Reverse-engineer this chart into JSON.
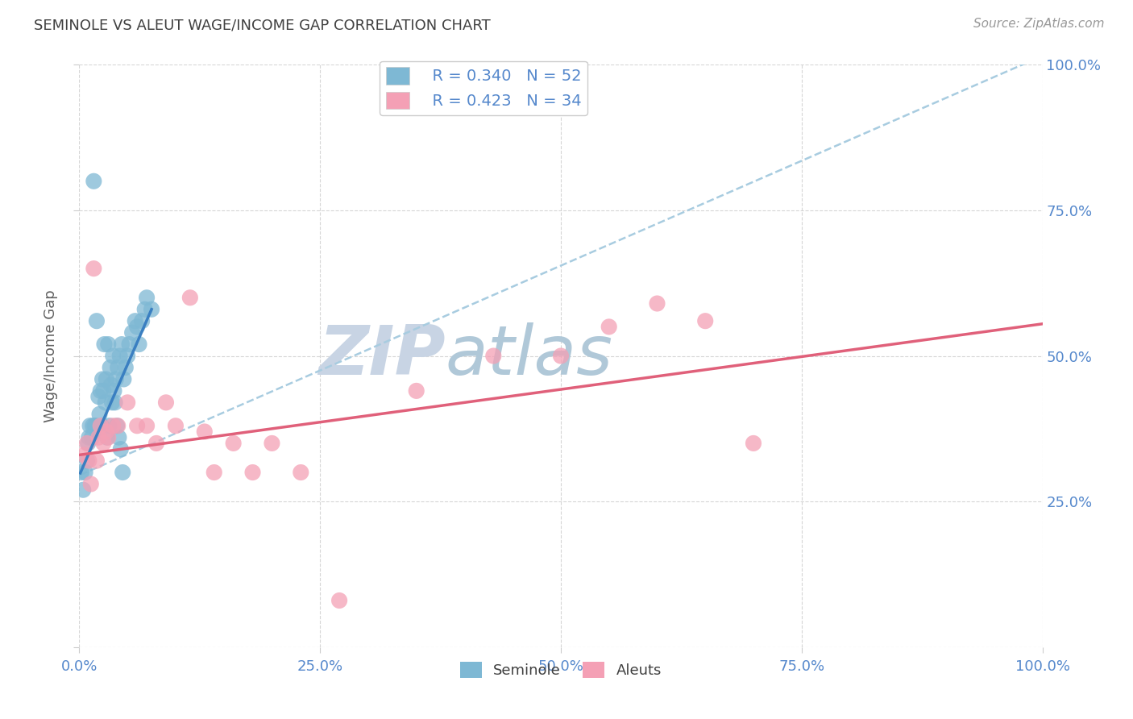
{
  "title": "SEMINOLE VS ALEUT WAGE/INCOME GAP CORRELATION CHART",
  "source": "Source: ZipAtlas.com",
  "ylabel": "Wage/Income Gap",
  "xlabel": "",
  "seminole_R": 0.34,
  "seminole_N": 52,
  "aleut_R": 0.423,
  "aleut_N": 34,
  "seminole_color": "#7eb8d4",
  "aleut_color": "#f4a0b5",
  "seminole_line_color": "#3a7fc1",
  "aleut_line_color": "#e0607a",
  "dashed_line_color": "#a8cce0",
  "background_color": "#ffffff",
  "watermark_zip_color": "#c8d4e4",
  "watermark_atlas_color": "#b0c8d8",
  "title_color": "#404040",
  "axis_label_color": "#5588cc",
  "seminole_x": [
    0.01,
    0.015,
    0.018,
    0.02,
    0.022,
    0.024,
    0.025,
    0.026,
    0.028,
    0.03,
    0.032,
    0.033,
    0.035,
    0.036,
    0.038,
    0.04,
    0.042,
    0.044,
    0.046,
    0.048,
    0.05,
    0.052,
    0.055,
    0.058,
    0.06,
    0.062,
    0.065,
    0.068,
    0.07,
    0.075,
    0.002,
    0.004,
    0.006,
    0.008,
    0.009,
    0.011,
    0.013,
    0.014,
    0.016,
    0.017,
    0.019,
    0.021,
    0.023,
    0.027,
    0.029,
    0.031,
    0.034,
    0.037,
    0.039,
    0.041,
    0.043,
    0.045
  ],
  "seminole_y": [
    0.36,
    0.8,
    0.56,
    0.43,
    0.44,
    0.46,
    0.44,
    0.52,
    0.46,
    0.52,
    0.48,
    0.45,
    0.5,
    0.44,
    0.46,
    0.48,
    0.5,
    0.52,
    0.46,
    0.48,
    0.5,
    0.52,
    0.54,
    0.56,
    0.55,
    0.52,
    0.56,
    0.58,
    0.6,
    0.58,
    0.3,
    0.27,
    0.3,
    0.32,
    0.35,
    0.38,
    0.36,
    0.38,
    0.38,
    0.38,
    0.37,
    0.4,
    0.38,
    0.42,
    0.36,
    0.38,
    0.42,
    0.42,
    0.38,
    0.36,
    0.34,
    0.3
  ],
  "aleut_x": [
    0.005,
    0.008,
    0.01,
    0.012,
    0.015,
    0.018,
    0.02,
    0.022,
    0.025,
    0.028,
    0.03,
    0.035,
    0.04,
    0.05,
    0.06,
    0.07,
    0.08,
    0.09,
    0.1,
    0.115,
    0.13,
    0.14,
    0.16,
    0.18,
    0.2,
    0.23,
    0.27,
    0.35,
    0.43,
    0.5,
    0.55,
    0.6,
    0.65,
    0.7
  ],
  "aleut_y": [
    0.33,
    0.35,
    0.32,
    0.28,
    0.65,
    0.32,
    0.36,
    0.38,
    0.35,
    0.37,
    0.36,
    0.38,
    0.38,
    0.42,
    0.38,
    0.38,
    0.35,
    0.42,
    0.38,
    0.6,
    0.37,
    0.3,
    0.35,
    0.3,
    0.35,
    0.3,
    0.08,
    0.44,
    0.5,
    0.5,
    0.55,
    0.59,
    0.56,
    0.35
  ],
  "xlim": [
    0.0,
    1.0
  ],
  "ylim": [
    0.0,
    1.0
  ],
  "ytick_values": [
    0.0,
    0.25,
    0.5,
    0.75,
    1.0
  ],
  "xtick_values": [
    0.0,
    0.25,
    0.5,
    0.75,
    1.0
  ],
  "xtick_labels": [
    "0.0%",
    "25.0%",
    "50.0%",
    "75.0%",
    "100.0%"
  ],
  "ytick_labels_right": [
    "",
    "25.0%",
    "50.0%",
    "75.0%",
    "100.0%"
  ],
  "sem_line_x0": 0.001,
  "sem_line_x1": 0.075,
  "dash_line_x0": 0.001,
  "dash_line_x1": 1.0,
  "ale_line_x0": 0.001,
  "ale_line_x1": 1.0,
  "sem_line_y_intercept": 0.295,
  "sem_line_slope": 3.8,
  "dash_line_y_intercept": 0.295,
  "dash_line_slope": 0.72,
  "ale_line_y_intercept": 0.33,
  "ale_line_slope": 0.225
}
